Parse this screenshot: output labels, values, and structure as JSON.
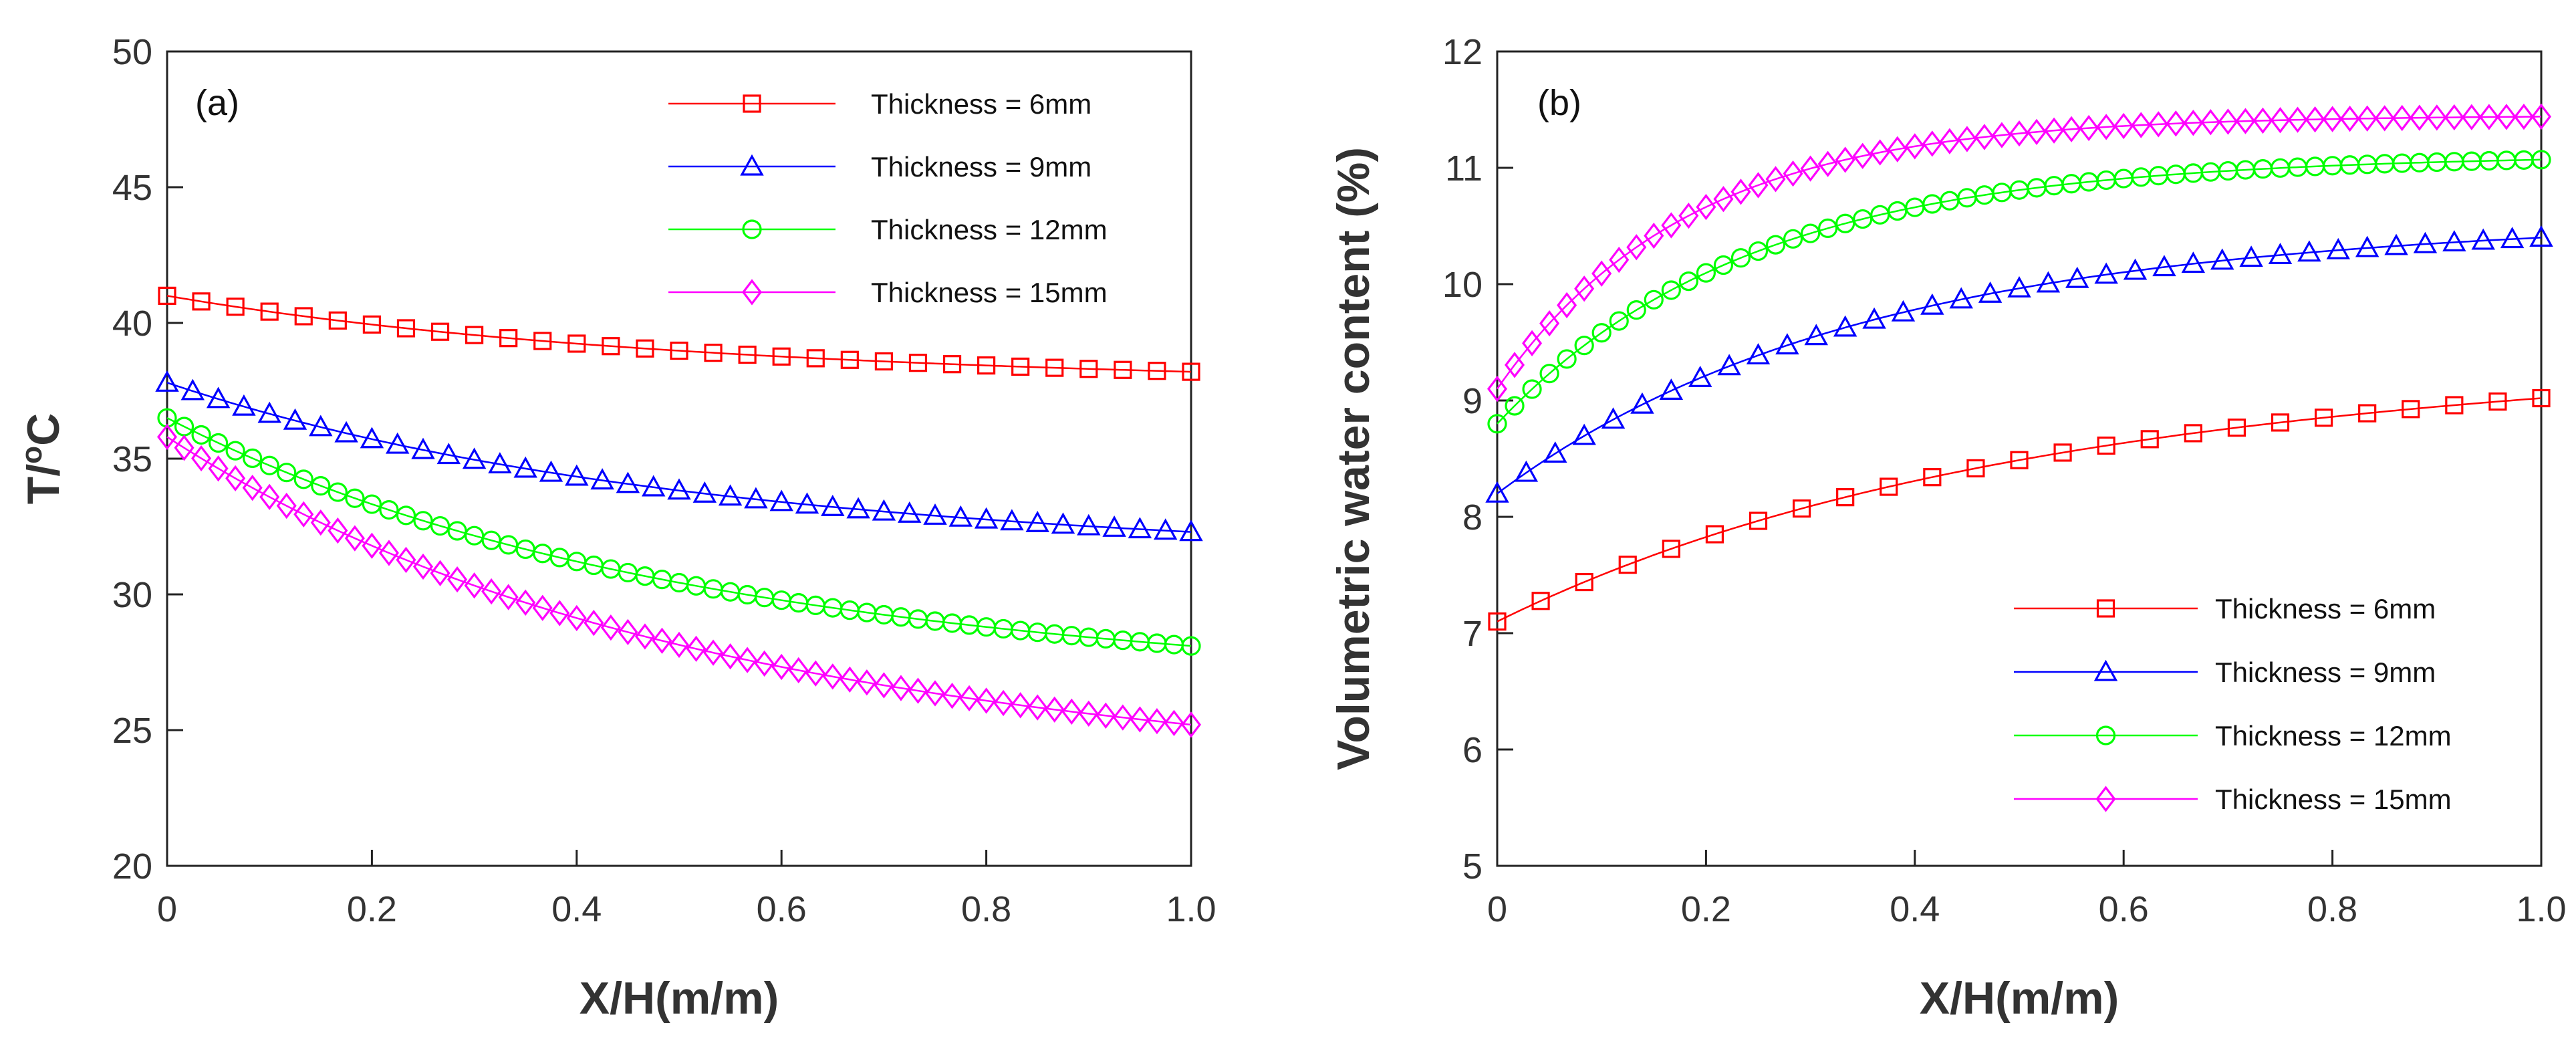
{
  "chart_data": [
    {
      "type": "line",
      "panel_label": "(a)",
      "xlabel": "X/H(m/m)",
      "ylabel_main": "T/",
      "ylabel_sup": "o",
      "ylabel_tail": "C",
      "xlim": [
        0,
        1.0
      ],
      "ylim": [
        20,
        50
      ],
      "xticks": [
        "0",
        "0.2",
        "0.4",
        "0.6",
        "0.8",
        "1.0"
      ],
      "xtick_values": [
        0,
        0.2,
        0.4,
        0.6,
        0.8,
        1.0
      ],
      "yticks": [
        "20",
        "25",
        "30",
        "35",
        "40",
        "45",
        "50"
      ],
      "ytick_values": [
        20,
        25,
        30,
        35,
        40,
        45,
        50
      ],
      "legend_position": "top-right",
      "curve_model": "exponential-approach",
      "series": [
        {
          "name": "Thickness = 6mm",
          "marker": "square",
          "color": "#ff0000",
          "start": 41.0,
          "end": 38.2,
          "rate": 2.2,
          "n_markers": 31
        },
        {
          "name": "Thickness = 9mm",
          "marker": "triangle",
          "color": "#0000ff",
          "start": 37.8,
          "end": 32.3,
          "rate": 2.2,
          "n_markers": 41
        },
        {
          "name": "Thickness = 12mm",
          "marker": "circle",
          "color": "#00ff00",
          "start": 36.5,
          "end": 28.1,
          "rate": 2.2,
          "n_markers": 61
        },
        {
          "name": "Thickness = 15mm",
          "marker": "diamond",
          "color": "#ff00ff",
          "start": 35.8,
          "end": 25.2,
          "rate": 2.2,
          "n_markers": 61
        }
      ]
    },
    {
      "type": "line",
      "panel_label": "(b)",
      "xlabel": "X/H(m/m)",
      "ylabel_main": "Volumetric water content (%)",
      "xlim": [
        0,
        1.0
      ],
      "ylim": [
        5,
        12
      ],
      "xticks": [
        "0",
        "0.2",
        "0.4",
        "0.6",
        "0.8",
        "1.0"
      ],
      "xtick_values": [
        0,
        0.2,
        0.4,
        0.6,
        0.8,
        1.0
      ],
      "yticks": [
        "5",
        "6",
        "7",
        "8",
        "9",
        "10",
        "11",
        "12"
      ],
      "ytick_values": [
        5,
        6,
        7,
        8,
        9,
        10,
        11,
        12
      ],
      "legend_position": "bottom-right",
      "curve_model": "exponential-approach",
      "series": [
        {
          "name": "Thickness = 6mm",
          "marker": "square",
          "color": "#ff0000",
          "start": 7.1,
          "end": 9.02,
          "rate": 2.2,
          "n_markers": 25
        },
        {
          "name": "Thickness = 9mm",
          "marker": "triangle",
          "color": "#0000ff",
          "start": 8.2,
          "end": 10.4,
          "rate": 3.0,
          "n_markers": 37
        },
        {
          "name": "Thickness = 12mm",
          "marker": "circle",
          "color": "#00ff00",
          "start": 8.8,
          "end": 11.07,
          "rate": 4.2,
          "n_markers": 61
        },
        {
          "name": "Thickness = 15mm",
          "marker": "diamond",
          "color": "#ff00ff",
          "start": 9.1,
          "end": 11.44,
          "rate": 5.5,
          "n_markers": 61
        }
      ]
    }
  ]
}
